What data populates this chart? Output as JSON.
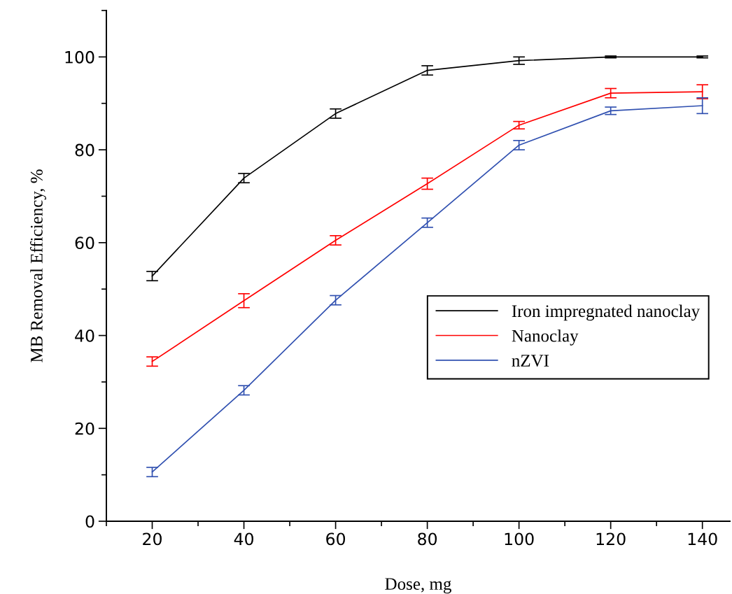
{
  "chart_data": {
    "type": "line",
    "xlabel": "Dose, mg",
    "ylabel": "MB Removal Efficiency, %",
    "x": [
      20,
      40,
      60,
      80,
      100,
      120,
      140
    ],
    "series": [
      {
        "name": "Iron impregnated nanoclay",
        "color": "#000000",
        "values": [
          52.8,
          73.9,
          87.8,
          97.1,
          99.2,
          100,
          100
        ],
        "errors": [
          1,
          1,
          1,
          1,
          0.8,
          0.2,
          0.2
        ]
      },
      {
        "name": "Nanoclay",
        "color": "#ff0000",
        "values": [
          34.4,
          47.5,
          60.5,
          72.7,
          85.3,
          92.2,
          92.5
        ],
        "errors": [
          1,
          1.5,
          1,
          1.2,
          0.8,
          1,
          1.5
        ]
      },
      {
        "name": "nZVI",
        "color": "#3050b0",
        "values": [
          10.6,
          28.2,
          47.6,
          64.3,
          81,
          88.4,
          89.5
        ],
        "errors": [
          1,
          1,
          1,
          1,
          1,
          0.8,
          1.7
        ]
      }
    ],
    "xlim": [
      10,
      146
    ],
    "ylim": [
      0,
      110
    ],
    "xticks": [
      20,
      40,
      60,
      80,
      100,
      120,
      140
    ],
    "yticks": [
      0,
      20,
      40,
      60,
      80,
      100
    ],
    "grid": false,
    "legend": "right",
    "marker": "none",
    "line_style": "solid"
  }
}
